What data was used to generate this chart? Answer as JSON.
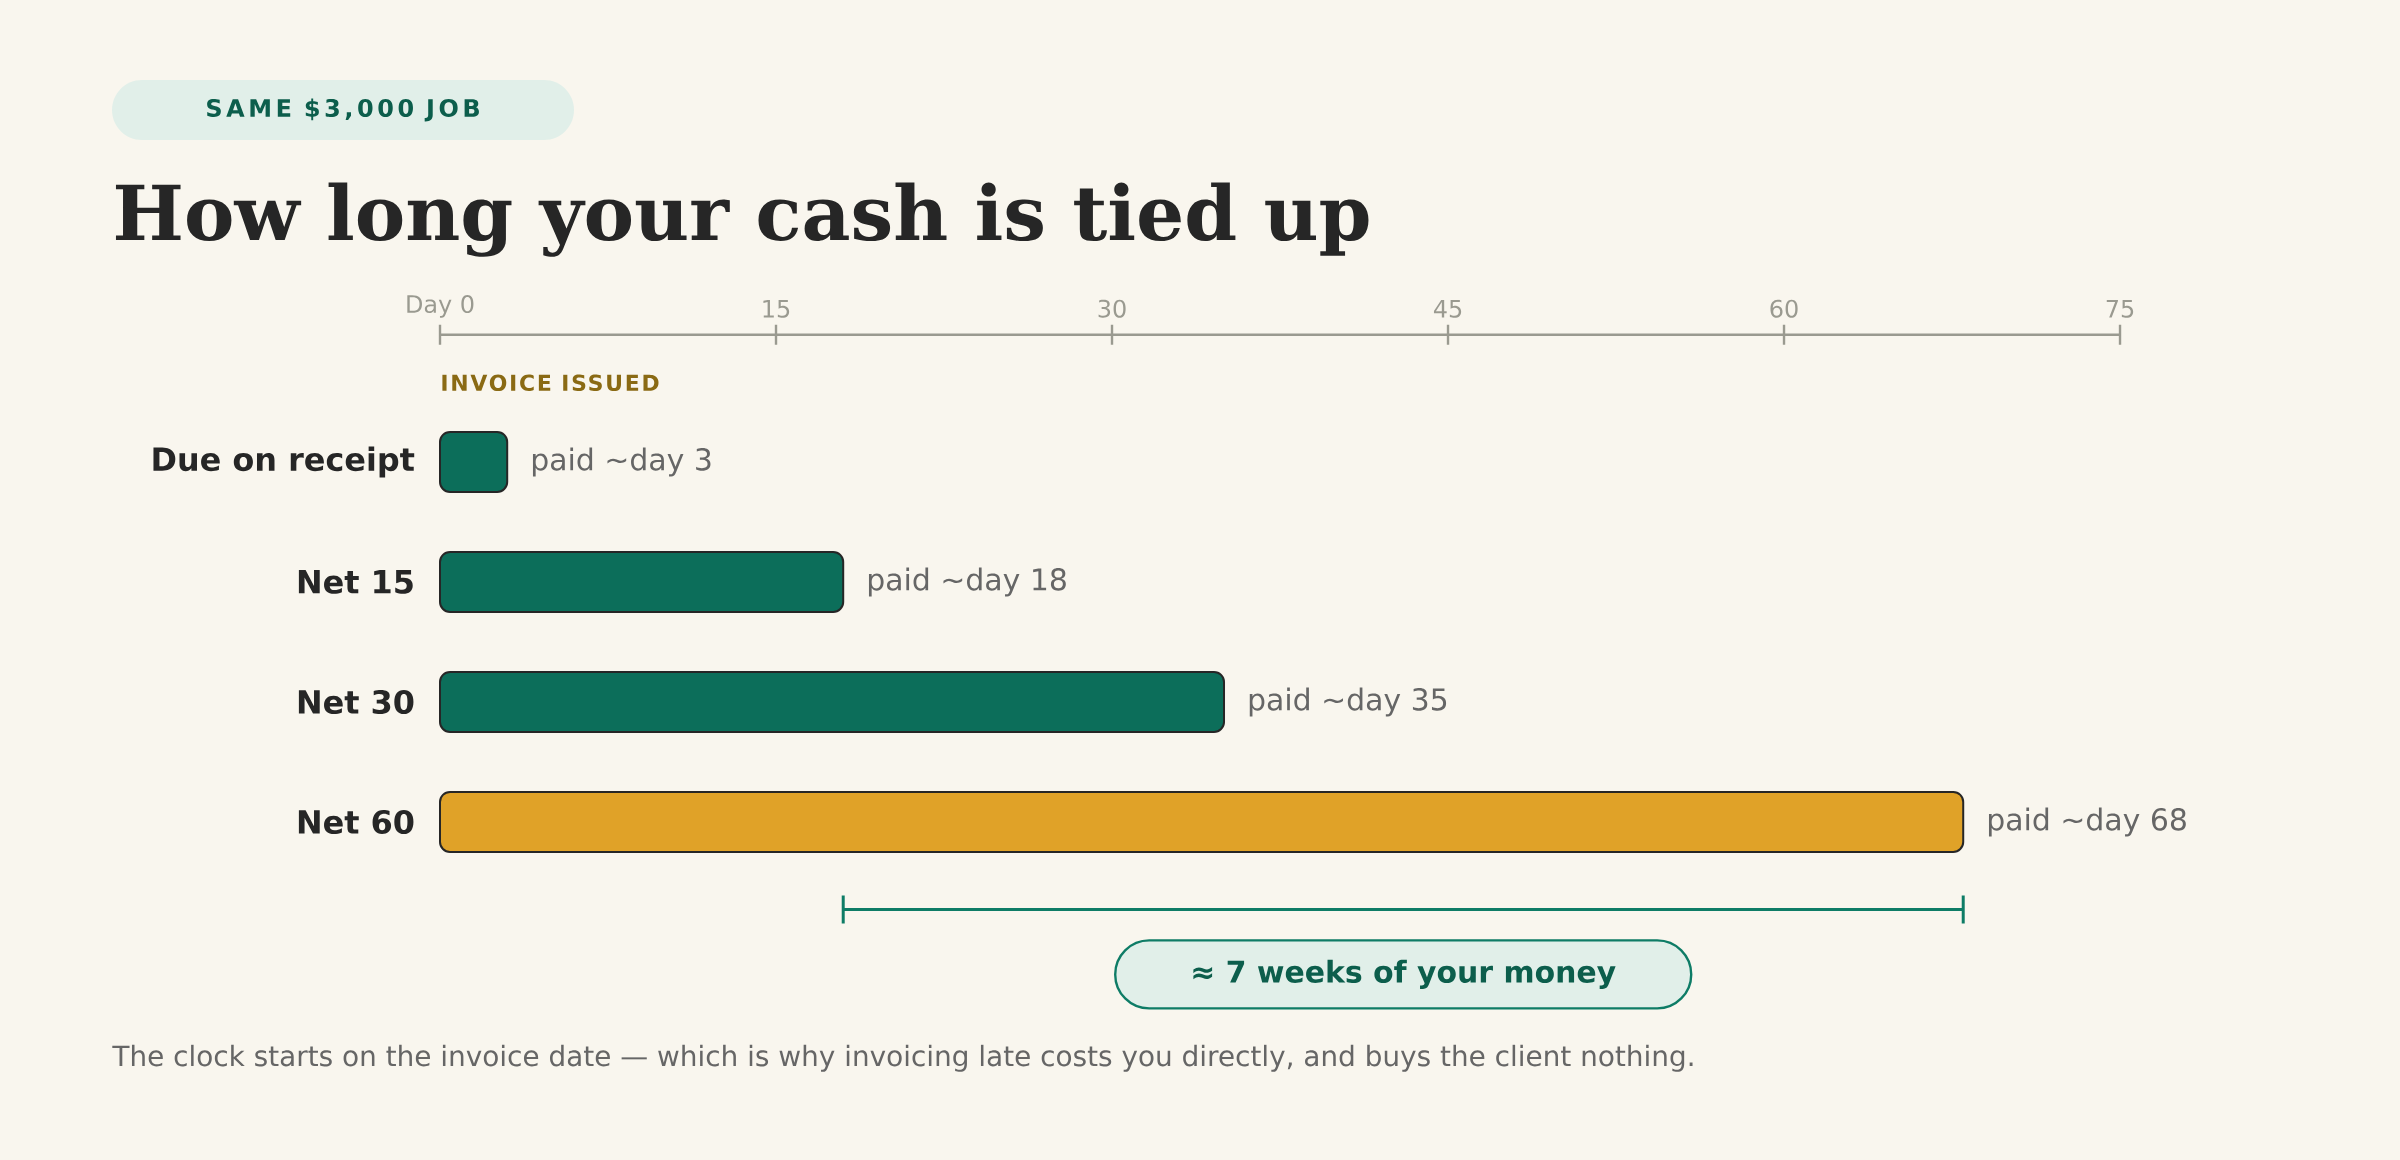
{
  "chart_data": {
    "type": "bar",
    "orientation": "horizontal",
    "subtitle": "SAME $3,000 JOB",
    "title": "How long your cash is tied up",
    "categories": [
      "Due on receipt",
      "Net 15",
      "Net 30",
      "Net 60"
    ],
    "values": [
      3,
      18,
      35,
      68
    ],
    "colors": [
      "#0c6e5a",
      "#0c6e5a",
      "#0c6e5a",
      "#e0a228"
    ],
    "value_labels": [
      "paid ~day 3",
      "paid ~day 18",
      "paid ~day 35",
      "paid ~day 68"
    ],
    "xlim": [
      0,
      75
    ],
    "xticks": [
      {
        "value": 0,
        "label": "Day 0"
      },
      15,
      30,
      45,
      60,
      75
    ],
    "annotations": [
      "INVOICE ISSUED",
      "≈ 7 weeks of your money",
      "The clock starts on the invoice date — which is why invoicing late costs you directly, and buys the client nothing."
    ]
  }
}
